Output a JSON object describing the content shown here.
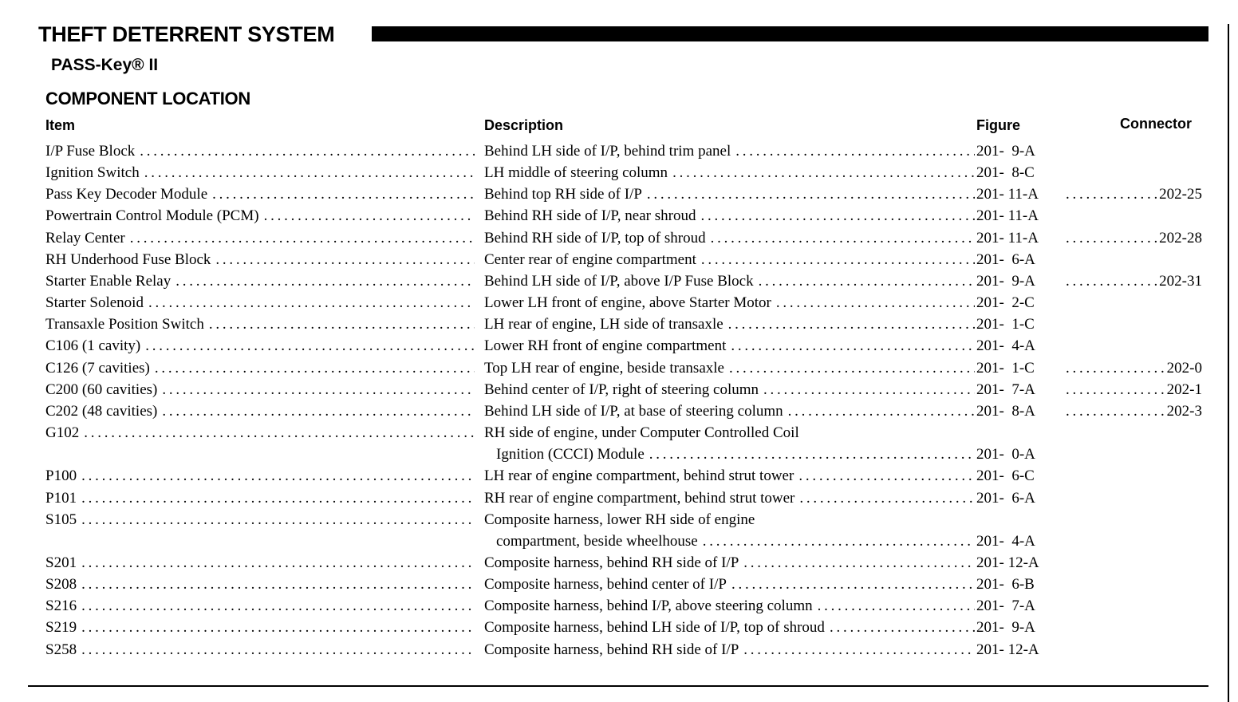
{
  "header": {
    "title": "THEFT DETERRENT SYSTEM",
    "subtitle": "PASS-Key® II",
    "section": "COMPONENT LOCATION"
  },
  "columns": {
    "item": "Item",
    "description": "Description",
    "figure": "Figure",
    "connector": "Connector"
  },
  "rows": [
    {
      "item": "I/P Fuse Block",
      "description": [
        "Behind LH side of I/P, behind trim panel"
      ],
      "figure": "201-  9-A",
      "connector": ""
    },
    {
      "item": "Ignition Switch",
      "description": [
        "LH middle of steering column"
      ],
      "figure": "201-  8-C",
      "connector": ""
    },
    {
      "item": "Pass Key Decoder Module",
      "description": [
        "Behind top RH side of I/P"
      ],
      "figure": "201- 11-A",
      "connector": "202-25"
    },
    {
      "item": "Powertrain Control Module (PCM)",
      "description": [
        "Behind RH side of I/P, near shroud"
      ],
      "figure": "201- 11-A",
      "connector": ""
    },
    {
      "item": "Relay Center",
      "description": [
        "Behind RH side of I/P, top of shroud"
      ],
      "figure": "201- 11-A",
      "connector": "202-28"
    },
    {
      "item": "RH Underhood Fuse Block",
      "description": [
        "Center rear of engine compartment"
      ],
      "figure": "201-  6-A",
      "connector": ""
    },
    {
      "item": "Starter Enable Relay",
      "description": [
        "Behind LH side of I/P, above I/P Fuse Block"
      ],
      "figure": "201-  9-A",
      "connector": "202-31"
    },
    {
      "item": "Starter Solenoid",
      "description": [
        "Lower LH front of engine, above Starter Motor"
      ],
      "figure": "201-  2-C",
      "connector": ""
    },
    {
      "item": "Transaxle Position Switch",
      "description": [
        "LH rear of engine, LH side of transaxle"
      ],
      "figure": "201-  1-C",
      "connector": ""
    },
    {
      "item": "C106 (1 cavity)",
      "description": [
        "Lower RH front of engine compartment"
      ],
      "figure": "201-  4-A",
      "connector": ""
    },
    {
      "item": "C126 (7 cavities)",
      "description": [
        "Top LH rear of engine, beside transaxle"
      ],
      "figure": "201-  1-C",
      "connector": "202-0"
    },
    {
      "item": "C200 (60 cavities)",
      "description": [
        "Behind center of I/P, right of steering column"
      ],
      "figure": "201-  7-A",
      "connector": "202-1"
    },
    {
      "item": "C202 (48 cavities)",
      "description": [
        "Behind LH side of I/P, at base of steering column"
      ],
      "figure": "201-  8-A",
      "connector": "202-3"
    },
    {
      "item": "G102",
      "description": [
        "RH side of engine, under Computer Controlled Coil",
        "Ignition (CCCI) Module"
      ],
      "figure": "201-  0-A",
      "connector": ""
    },
    {
      "item": "P100",
      "description": [
        "LH rear of engine compartment, behind strut tower"
      ],
      "figure": "201-  6-C",
      "connector": ""
    },
    {
      "item": "P101",
      "description": [
        "RH rear of engine compartment, behind strut tower"
      ],
      "figure": "201-  6-A",
      "connector": ""
    },
    {
      "item": "S105",
      "description": [
        "Composite harness, lower RH side of engine",
        "compartment, beside wheelhouse"
      ],
      "figure": "201-  4-A",
      "connector": ""
    },
    {
      "item": "S201",
      "description": [
        "Composite harness, behind RH side of I/P"
      ],
      "figure": "201- 12-A",
      "connector": ""
    },
    {
      "item": "S208",
      "description": [
        "Composite harness, behind center of I/P"
      ],
      "figure": "201-  6-B",
      "connector": ""
    },
    {
      "item": "S216",
      "description": [
        "Composite harness, behind I/P, above steering column"
      ],
      "figure": "201-  7-A",
      "connector": ""
    },
    {
      "item": "S219",
      "description": [
        "Composite harness, behind LH side of I/P, top of shroud"
      ],
      "figure": "201-  9-A",
      "connector": ""
    },
    {
      "item": "S258",
      "description": [
        "Composite harness, behind RH side of I/P"
      ],
      "figure": "201- 12-A",
      "connector": ""
    }
  ]
}
